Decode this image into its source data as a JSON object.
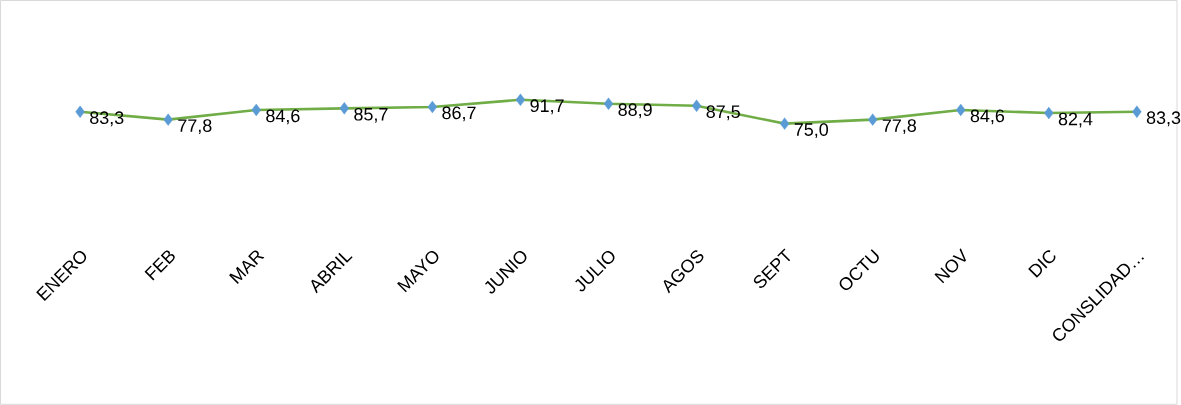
{
  "chart_data": {
    "type": "line",
    "categories": [
      "ENERO",
      "FEB",
      "MAR",
      "ABRIL",
      "MAYO",
      "JUNIO",
      "JULIO",
      "AGOS",
      "SEPT",
      "OCTU",
      "NOV",
      "DIC",
      "CONSLIDAD…"
    ],
    "series": [
      {
        "color": "#70ad47",
        "colors": [
          "#5b9bd5",
          "#5b9bd5",
          "#5b9bd5",
          "#5b9bd5",
          "#5b9bd5",
          "#5b9bd5",
          "#5b9bd5",
          "#5b9bd5",
          "#5b9bd5",
          "#5b9bd5",
          "#5b9bd5",
          "#5b9bd5",
          "#5b9bd5"
        ],
        "values": [
          83.3,
          77.8,
          84.6,
          85.7,
          86.7,
          91.7,
          88.9,
          87.5,
          75.0,
          77.8,
          84.6,
          82.4,
          83.3
        ],
        "value_labels": [
          "83,3",
          "77,8",
          "84,6",
          "85,7",
          "86,7",
          "91,7",
          "88,9",
          "87,5",
          "75,0",
          "77,8",
          "84,6",
          "82,4",
          "83,3"
        ]
      }
    ],
    "marker": "diamond",
    "line_style": "solid"
  }
}
